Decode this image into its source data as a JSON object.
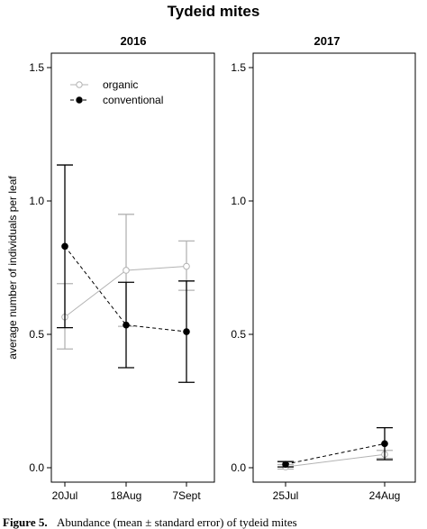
{
  "chart_data": [
    {
      "type": "line",
      "title": "2016",
      "x": [
        "20Jul",
        "18Aug",
        "7Sept"
      ],
      "ylim": [
        0,
        1.5
      ],
      "yticks": [
        "0.0",
        "0.5",
        "1.0",
        "1.5"
      ],
      "ylabel": "average number of individuals per leaf",
      "xlabel": "",
      "grid": false,
      "legend": "top-left",
      "series": [
        {
          "name": "organic",
          "values": [
            0.565,
            0.74,
            0.755
          ],
          "lower": [
            0.445,
            0.53,
            0.665
          ],
          "upper": [
            0.69,
            0.95,
            0.85
          ]
        },
        {
          "name": "conventional",
          "values": [
            0.83,
            0.535,
            0.51
          ],
          "lower": [
            0.525,
            0.375,
            0.32
          ],
          "upper": [
            1.135,
            0.695,
            0.7
          ]
        }
      ]
    },
    {
      "type": "line",
      "title": "2017",
      "x": [
        "25Jul",
        "24Aug"
      ],
      "ylim": [
        0,
        1.5
      ],
      "yticks": [
        "0.0",
        "0.5",
        "1.0",
        "1.5"
      ],
      "xlabel": "",
      "grid": false,
      "series": [
        {
          "name": "organic",
          "values": [
            0.003,
            0.05
          ],
          "lower": [
            -0.005,
            0.035
          ],
          "upper": [
            0.012,
            0.065
          ]
        },
        {
          "name": "conventional",
          "values": [
            0.013,
            0.09
          ],
          "lower": [
            0.003,
            0.03
          ],
          "upper": [
            0.023,
            0.15
          ]
        }
      ]
    }
  ],
  "figure_title": "Tydeid mites",
  "caption_label": "Figure 5.",
  "caption_text": "Abundance (mean ± standard error) of tydeid mites",
  "colors": {
    "organic": "#b3b3b3",
    "conventional": "#000000"
  }
}
